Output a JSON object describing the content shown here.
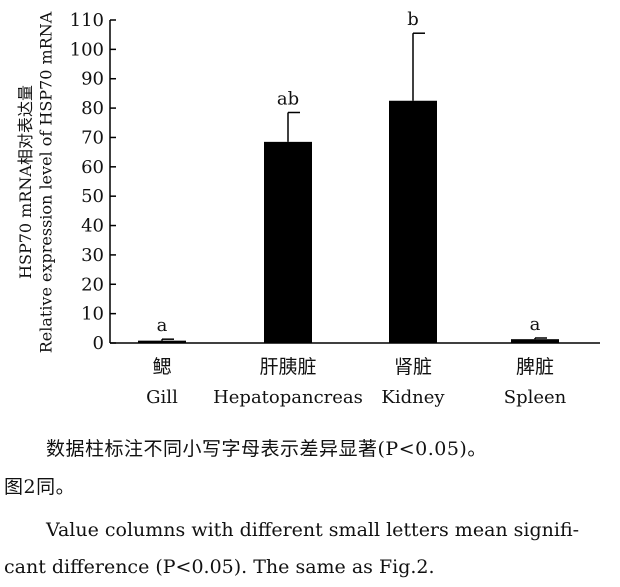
{
  "chart_data": {
    "type": "bar",
    "categories_cn": [
      "鳃",
      "肝胰脏",
      "肾脏",
      "脾脏"
    ],
    "categories_en": [
      "Gill",
      "Hepatopancreas",
      "Kidney",
      "Spleen"
    ],
    "values": [
      0.8,
      68.5,
      82.5,
      1.3
    ],
    "errors": [
      0.5,
      10.0,
      23.0,
      0.4
    ],
    "labels": [
      "a",
      "ab",
      "b",
      "a"
    ],
    "ylim": [
      0,
      110
    ],
    "yticks": [
      0,
      10,
      20,
      30,
      40,
      50,
      60,
      70,
      80,
      90,
      100,
      110
    ],
    "ylabel_line1": "HSP70 mRNA相对表达量",
    "ylabel_line2": "Relative expression level of HSP70 mRNA",
    "bar_color": "#000000"
  },
  "caption": {
    "cn_line1": "数据柱标注不同小写字母表示差异显著(P<0.05)。",
    "cn_line2": "图2同。",
    "en_line1": "Value columns with different small letters mean signifi-",
    "en_line2": "cant difference (P<0.05). The same as Fig.2."
  }
}
